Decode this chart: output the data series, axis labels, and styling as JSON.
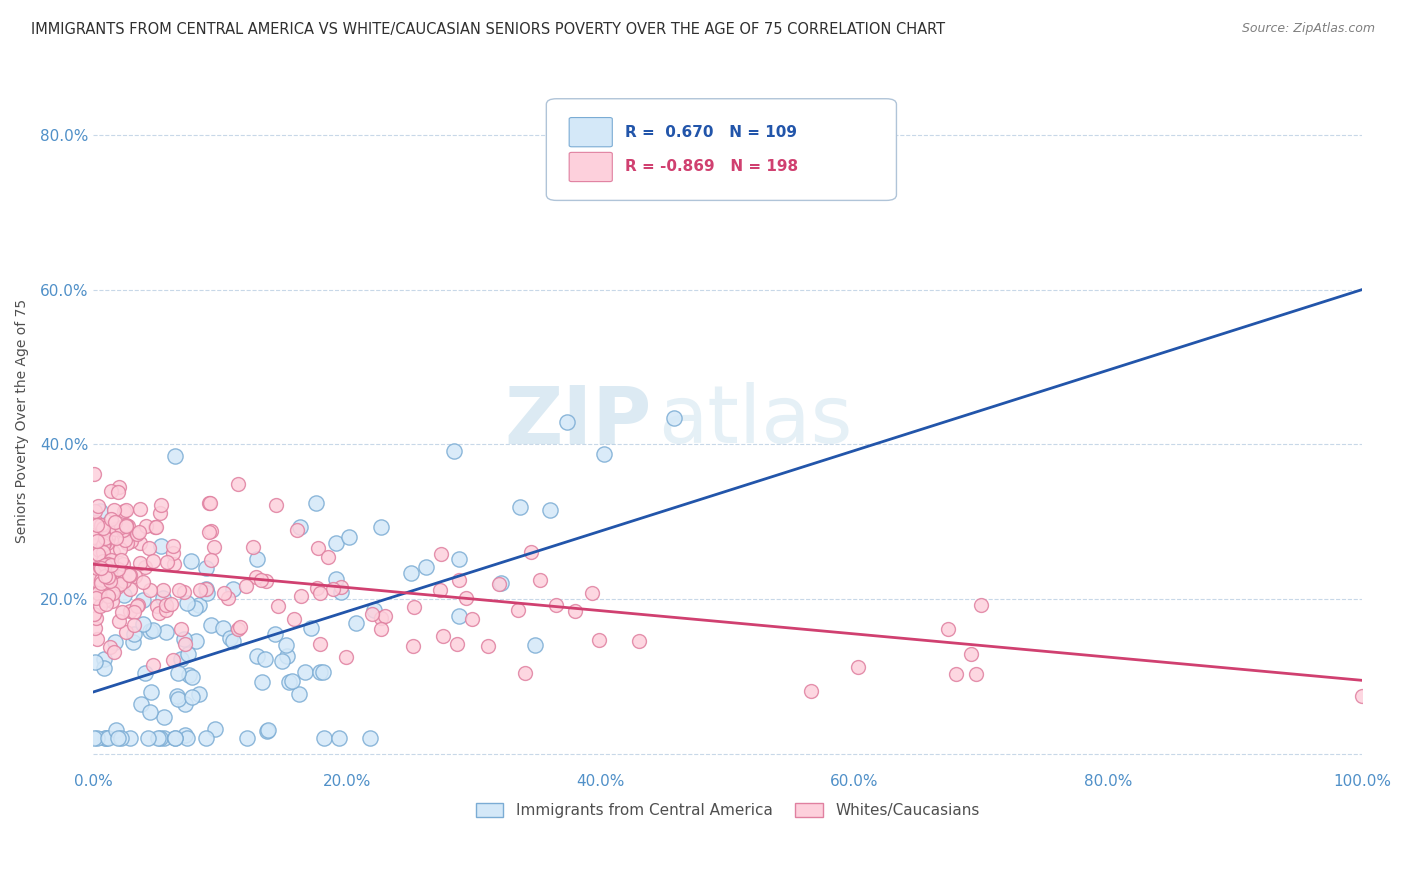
{
  "title": "IMMIGRANTS FROM CENTRAL AMERICA VS WHITE/CAUCASIAN SENIORS POVERTY OVER THE AGE OF 75 CORRELATION CHART",
  "source": "Source: ZipAtlas.com",
  "ylabel": "Seniors Poverty Over the Age of 75",
  "watermark_zip": "ZIP",
  "watermark_atlas": "atlas",
  "xlim": [
    0,
    1.0
  ],
  "ylim": [
    -0.02,
    0.88
  ],
  "xtick_vals": [
    0.0,
    0.2,
    0.4,
    0.6,
    0.8,
    1.0
  ],
  "xtick_labels": [
    "0.0%",
    "20.0%",
    "40.0%",
    "60.0%",
    "80.0%",
    "100.0%"
  ],
  "ytick_vals": [
    0.0,
    0.2,
    0.4,
    0.6,
    0.8
  ],
  "ytick_labels": [
    "",
    "20.0%",
    "40.0%",
    "60.0%",
    "80.0%"
  ],
  "blue_R": 0.67,
  "blue_N": 109,
  "pink_R": -0.869,
  "pink_N": 198,
  "blue_face_color": "#D4E8F8",
  "blue_edge_color": "#7BACD4",
  "blue_line_color": "#2255AA",
  "pink_face_color": "#FDD0DC",
  "pink_edge_color": "#E080A0",
  "pink_line_color": "#D04070",
  "legend_label_blue": "Immigrants from Central America",
  "legend_label_pink": "Whites/Caucasians",
  "background_color": "#FFFFFF",
  "grid_color": "#C8D8E8",
  "title_color": "#303030",
  "tick_color": "#5090C8",
  "blue_line_start_y": 0.08,
  "blue_line_end_y": 0.6,
  "pink_line_start_y": 0.245,
  "pink_line_end_y": 0.095
}
